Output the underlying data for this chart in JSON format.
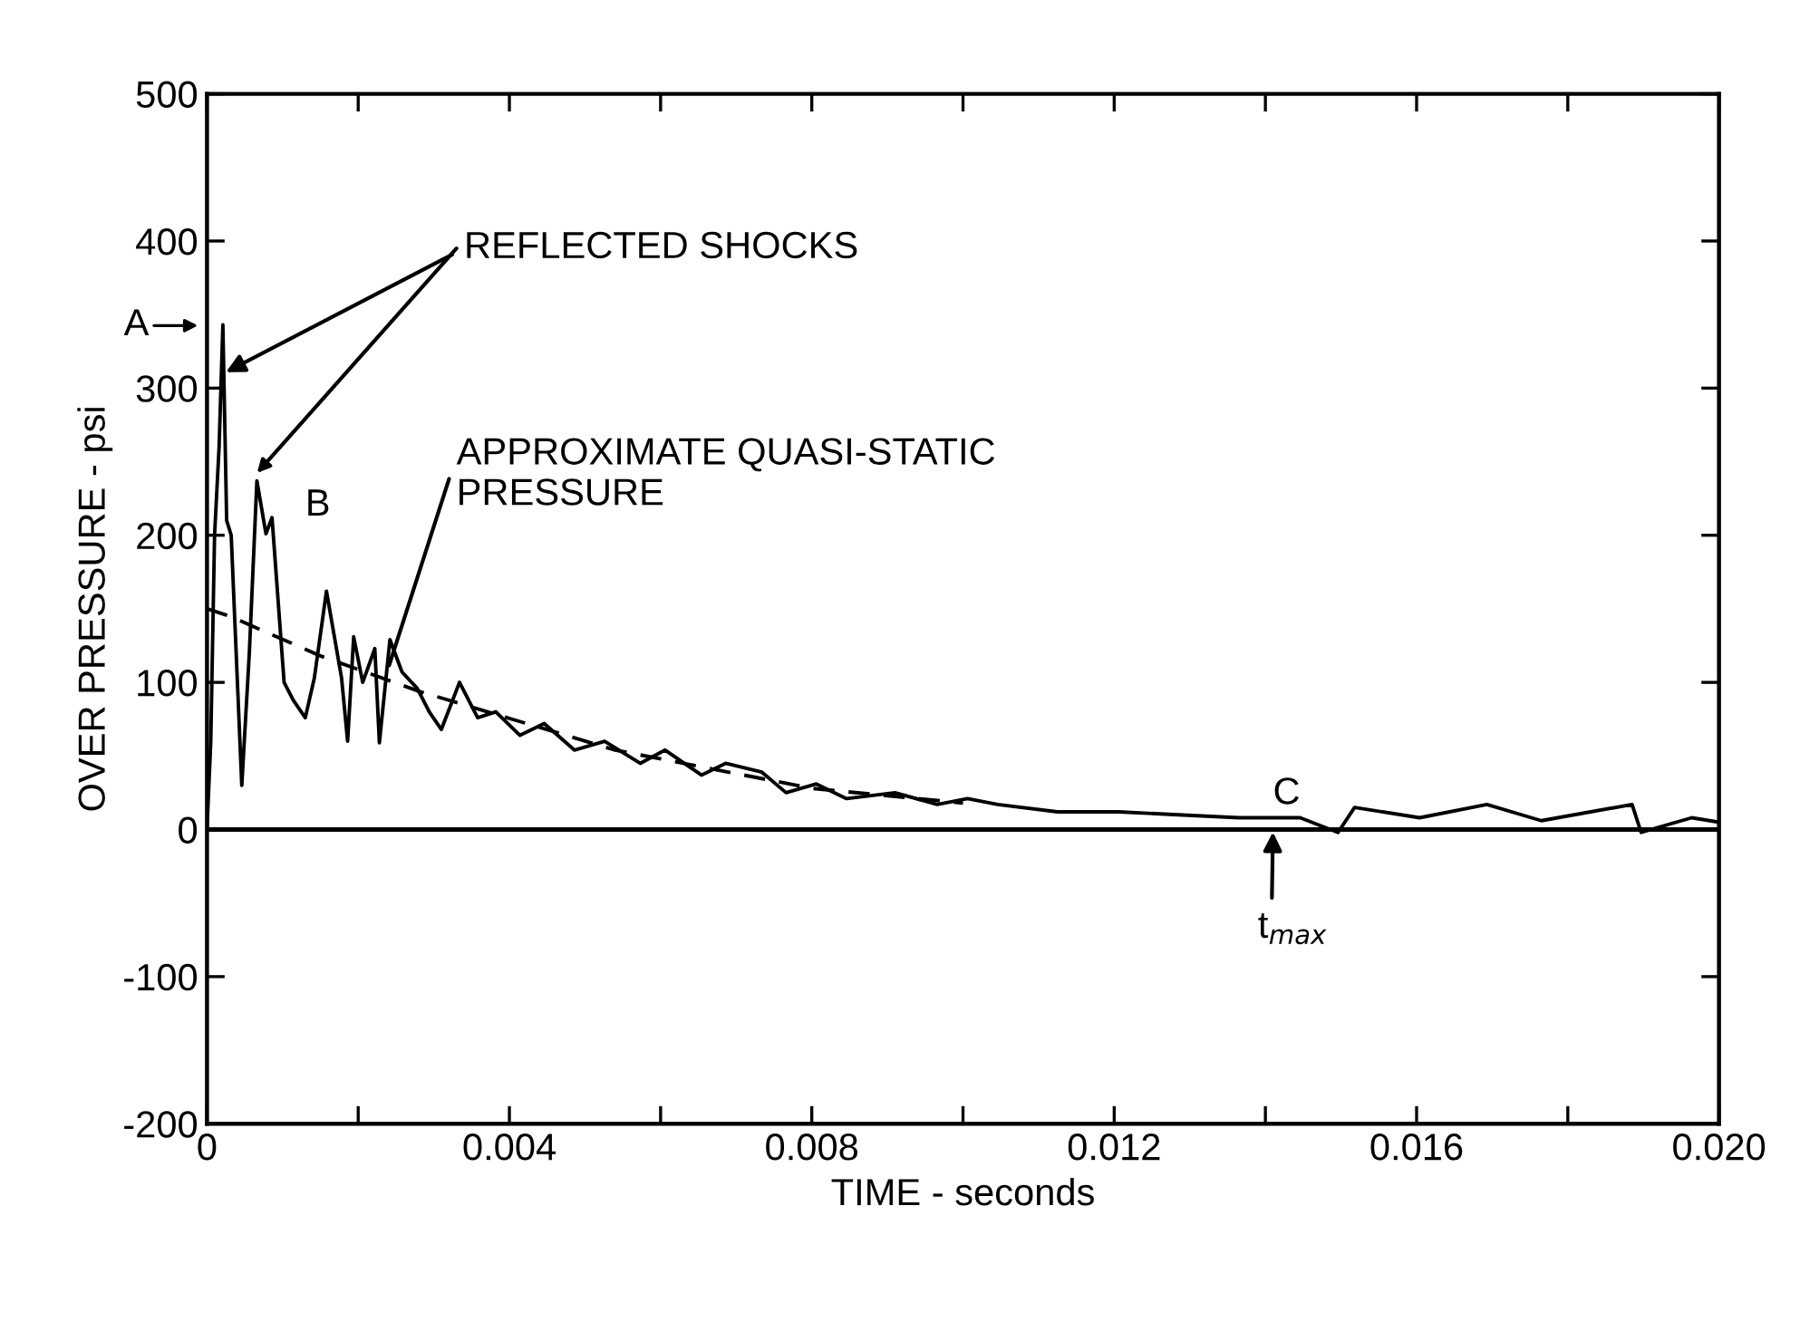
{
  "chart_data": {
    "type": "line",
    "xlabel": "TIME - seconds",
    "ylabel": "OVER PRESSURE - psi",
    "xlim": [
      0,
      0.02
    ],
    "ylim": [
      -200,
      500
    ],
    "xticks": [
      0,
      {
        "value": 0.002,
        "label": null
      },
      0.004,
      {
        "value": 0.006,
        "label": null
      },
      0.008,
      {
        "value": 0.01,
        "label": null
      },
      0.012,
      {
        "value": 0.014,
        "label": null
      },
      0.016,
      {
        "value": 0.018,
        "label": null
      },
      {
        "value": 0.02,
        "label": "0.020"
      }
    ],
    "yticks": [
      -200,
      -100,
      0,
      100,
      200,
      300,
      400,
      500
    ],
    "grid": false,
    "legend": false,
    "marker": "none",
    "ref_lines": [
      {
        "axis": "y",
        "value": 0,
        "color": "#000000",
        "line_style": "solid"
      }
    ],
    "series": [
      {
        "color": "#000000",
        "line_style": "solid",
        "x": [
          0,
          5e-05,
          0.0001,
          0.00016,
          0.00021,
          0.00026,
          0.00032,
          0.00046,
          0.00056,
          0.00066,
          0.00078,
          0.00086,
          0.00102,
          0.00114,
          0.0013,
          0.00142,
          0.00158,
          0.00178,
          0.00186,
          0.00194,
          0.00206,
          0.00222,
          0.00228,
          0.00242,
          0.00258,
          0.00278,
          0.00294,
          0.0031,
          0.00334,
          0.00358,
          0.00382,
          0.00414,
          0.00446,
          0.00486,
          0.00526,
          0.00573,
          0.00606,
          0.00654,
          0.00686,
          0.00734,
          0.00766,
          0.00806,
          0.00846,
          0.0091,
          0.00966,
          0.01006,
          0.01046,
          0.01125,
          0.01206,
          0.01285,
          0.01365,
          0.01446,
          0.01496,
          0.01518,
          0.01604,
          0.01693,
          0.01765,
          0.01885,
          0.01897,
          0.01964,
          0.02
        ],
        "values": [
          0,
          60,
          200,
          260,
          343,
          210,
          200,
          30,
          120,
          237,
          201,
          212,
          100,
          88,
          76,
          103,
          162,
          103,
          60,
          131,
          100,
          123,
          59,
          129,
          107,
          96,
          80,
          68,
          100,
          76,
          80,
          64,
          72,
          54,
          60,
          45,
          54,
          37,
          45,
          39,
          25,
          31,
          21,
          25,
          17,
          21,
          17,
          12,
          12,
          10,
          8,
          8,
          -2,
          15,
          8,
          17,
          6,
          17,
          -2,
          8,
          5
        ]
      },
      {
        "type": "line",
        "color": "#000000",
        "line_style": "dashed",
        "x": [
          0,
          0.0003,
          0.0015,
          0.0028,
          0.0054,
          0.008,
          0.01
        ],
        "values": [
          150,
          145,
          118,
          94,
          54,
          28,
          18
        ]
      }
    ],
    "annotations": [
      {
        "text": "REFLECTED SHOCKS",
        "x": 0.00022,
        "y": 310
      },
      "A",
      "B",
      {
        "text": "APPROXIMATE QUASI-STATIC\nPRESSURE",
        "x": 0.0024,
        "y": 110
      },
      "C",
      {
        "text": "t$_{max}$",
        "x": 0.0141,
        "y": 0
      }
    ]
  }
}
